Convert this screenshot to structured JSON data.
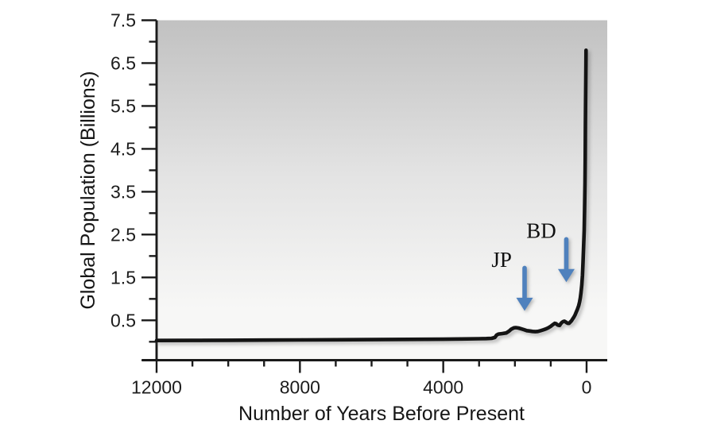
{
  "chart_data": {
    "type": "line",
    "title": "",
    "xlabel": "Number of Years Before Present",
    "ylabel": "Global Population (Billions)",
    "xlim": [
      12000,
      -577
    ],
    "ylim": [
      -0.43,
      7.5
    ],
    "x_axis_reversed": true,
    "x_major_ticks": [
      12000,
      8000,
      4000,
      0
    ],
    "x_minor_tick_step": 1000,
    "y_major_ticks": [
      0.5,
      1.5,
      2.5,
      3.5,
      4.5,
      5.5,
      6.5,
      7.5
    ],
    "y_minor_ticks": [
      0,
      1,
      2,
      3,
      4,
      5,
      6,
      7
    ],
    "grid": false,
    "legend": false,
    "plot_background_gradient": {
      "top": "#c1c1c1",
      "middle": "#e3e3e3",
      "bottom": "#f7f7f6"
    },
    "line_color": "#141414",
    "line_width": 4.6,
    "annotation_color": "#4f81bd",
    "series": [
      {
        "name": "Global population",
        "points": [
          [
            12000,
            0.03
          ],
          [
            11000,
            0.032
          ],
          [
            10000,
            0.035
          ],
          [
            9000,
            0.038
          ],
          [
            8000,
            0.042
          ],
          [
            7000,
            0.046
          ],
          [
            6000,
            0.05
          ],
          [
            5000,
            0.055
          ],
          [
            4500,
            0.058
          ],
          [
            4000,
            0.06
          ],
          [
            3500,
            0.064
          ],
          [
            3000,
            0.07
          ],
          [
            2800,
            0.074
          ],
          [
            2650,
            0.08
          ],
          [
            2560,
            0.1
          ],
          [
            2510,
            0.155
          ],
          [
            2460,
            0.18
          ],
          [
            2350,
            0.19
          ],
          [
            2240,
            0.205
          ],
          [
            2160,
            0.25
          ],
          [
            2100,
            0.295
          ],
          [
            2030,
            0.325
          ],
          [
            1975,
            0.33
          ],
          [
            1900,
            0.32
          ],
          [
            1820,
            0.3
          ],
          [
            1740,
            0.28
          ],
          [
            1670,
            0.26
          ],
          [
            1580,
            0.25
          ],
          [
            1510,
            0.24
          ],
          [
            1430,
            0.235
          ],
          [
            1360,
            0.24
          ],
          [
            1280,
            0.26
          ],
          [
            1200,
            0.28
          ],
          [
            1130,
            0.3
          ],
          [
            1070,
            0.325
          ],
          [
            1000,
            0.36
          ],
          [
            955,
            0.39
          ],
          [
            890,
            0.43
          ],
          [
            850,
            0.42
          ],
          [
            820,
            0.4
          ],
          [
            790,
            0.385
          ],
          [
            755,
            0.38
          ],
          [
            720,
            0.42
          ],
          [
            690,
            0.45
          ],
          [
            655,
            0.47
          ],
          [
            620,
            0.48
          ],
          [
            590,
            0.465
          ],
          [
            555,
            0.445
          ],
          [
            520,
            0.43
          ],
          [
            490,
            0.43
          ],
          [
            455,
            0.46
          ],
          [
            420,
            0.49
          ],
          [
            390,
            0.53
          ],
          [
            355,
            0.575
          ],
          [
            320,
            0.63
          ],
          [
            290,
            0.69
          ],
          [
            255,
            0.76
          ],
          [
            220,
            0.845
          ],
          [
            195,
            0.93
          ],
          [
            175,
            1.02
          ],
          [
            155,
            1.15
          ],
          [
            133,
            1.33
          ],
          [
            115,
            1.55
          ],
          [
            100,
            1.85
          ],
          [
            85,
            2.2
          ],
          [
            67,
            2.6
          ],
          [
            55,
            3.1
          ],
          [
            45,
            3.7
          ],
          [
            38,
            4.3
          ],
          [
            33,
            5.0
          ],
          [
            28,
            5.5
          ],
          [
            22,
            6.1
          ],
          [
            18,
            6.5
          ],
          [
            15,
            6.8
          ]
        ]
      }
    ],
    "annotations": [
      {
        "label": "JP",
        "label_x": 2370,
        "label_y": 1.91,
        "arrow_x": 1730,
        "arrow_y_start": 1.72,
        "arrow_y_tip": 0.72
      },
      {
        "label": "BD",
        "label_x": 1265,
        "label_y": 2.59,
        "arrow_x": 566,
        "arrow_y_start": 2.39,
        "arrow_y_tip": 1.39
      }
    ]
  }
}
